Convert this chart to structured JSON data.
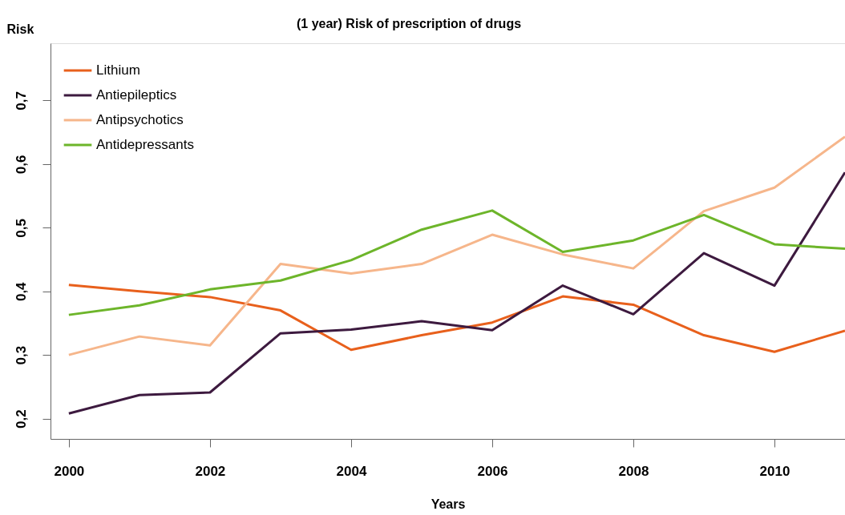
{
  "chart_data": {
    "type": "line",
    "title": "(1 year) Risk of prescription of drugs",
    "xlabel": "Years",
    "ylabel": "Risk",
    "x": [
      2000,
      2001,
      2002,
      2003,
      2004,
      2005,
      2006,
      2007,
      2008,
      2009,
      2010,
      2011
    ],
    "series": [
      {
        "name": "Lithium",
        "color": "#e8601c",
        "values": [
          0.41,
          0.4,
          0.391,
          0.37,
          0.308,
          0.331,
          0.351,
          0.392,
          0.379,
          0.331,
          0.305,
          0.338
        ]
      },
      {
        "name": "Antiepileptics",
        "color": "#3d1a3f",
        "values": [
          0.208,
          0.237,
          0.241,
          0.334,
          0.34,
          0.353,
          0.339,
          0.409,
          0.364,
          0.46,
          0.409,
          0.587
        ]
      },
      {
        "name": "Antipsychotics",
        "color": "#f6b68b",
        "values": [
          0.3,
          0.329,
          0.315,
          0.443,
          0.428,
          0.443,
          0.489,
          0.458,
          0.436,
          0.526,
          0.563,
          0.643
        ]
      },
      {
        "name": "Antidepressants",
        "color": "#6db52a",
        "values": [
          0.363,
          0.378,
          0.403,
          0.417,
          0.449,
          0.497,
          0.527,
          0.462,
          0.48,
          0.52,
          0.474,
          0.467
        ]
      }
    ],
    "xlim": [
      1999.74,
      2011
    ],
    "ylim": [
      0.168,
      0.79
    ],
    "xticks": [
      2000,
      2002,
      2004,
      2006,
      2008,
      2010
    ],
    "yticks": [
      {
        "value": 0.2,
        "label": "0,2"
      },
      {
        "value": 0.3,
        "label": "0,3"
      },
      {
        "value": 0.4,
        "label": "0,4"
      },
      {
        "value": 0.5,
        "label": "0,5"
      },
      {
        "value": 0.6,
        "label": "0,6"
      },
      {
        "value": 0.7,
        "label": "0,7"
      }
    ],
    "grid": false,
    "legend": "top left",
    "marker": "none",
    "line_style": "solid"
  }
}
